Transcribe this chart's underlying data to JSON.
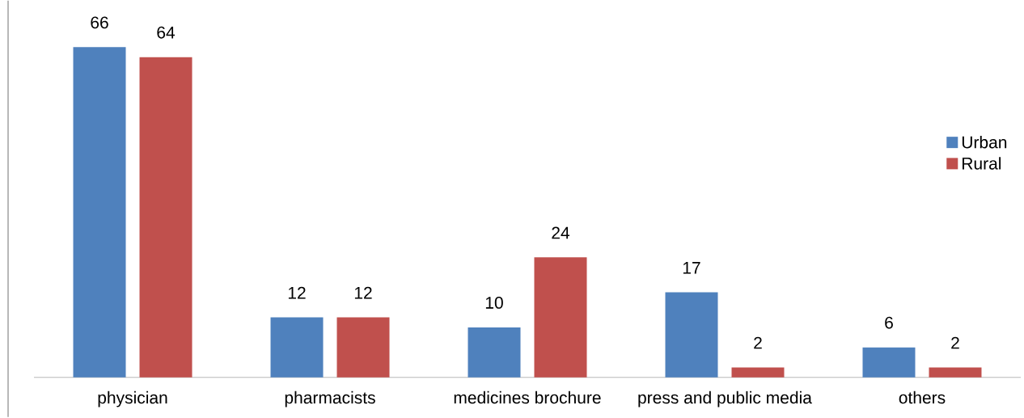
{
  "chart_data": {
    "type": "bar",
    "categories": [
      "physician",
      "pharmacists",
      "medicines brochure",
      "press and public media",
      "others"
    ],
    "series": [
      {
        "name": "Urban",
        "color": "#4f81bd",
        "values": [
          66,
          12,
          10,
          17,
          6
        ]
      },
      {
        "name": "Rural",
        "color": "#c0504d",
        "values": [
          64,
          12,
          24,
          2,
          2
        ]
      }
    ],
    "data_labels": true,
    "legend": "right"
  }
}
